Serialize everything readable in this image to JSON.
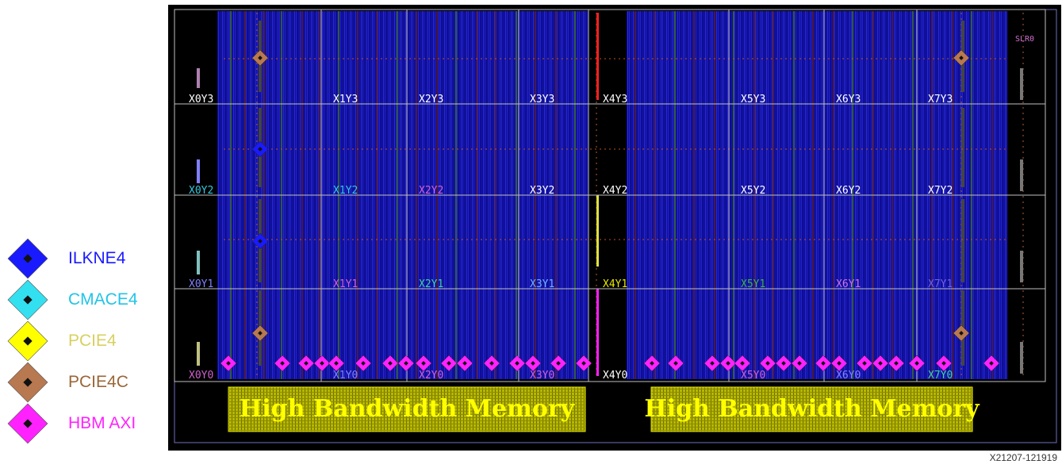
{
  "legend": [
    {
      "key": "ilkne4",
      "label": "ILKNE4",
      "color": "#1a1aff",
      "text_color": "#1a1aff"
    },
    {
      "key": "cmace4",
      "label": "CMACE4",
      "color": "#33e0f0",
      "text_color": "#22c4e6"
    },
    {
      "key": "pcie4",
      "label": "PCIE4",
      "color": "#ffff00",
      "text_color": "#d8d060"
    },
    {
      "key": "pcie4c",
      "label": "PCIE4C",
      "color": "#b87850",
      "text_color": "#9a6638"
    },
    {
      "key": "hbm_axi",
      "label": "HBM AXI",
      "color": "#ff22ff",
      "text_color": "#ff22ff"
    }
  ],
  "device": {
    "slr_label": "SLR0",
    "hbm_labels": [
      "High Bandwidth Memory",
      "High Bandwidth Memory"
    ],
    "clock_regions": [
      {
        "name": "X0Y3",
        "color": "#ffffff"
      },
      {
        "name": "X1Y3",
        "color": "#ffffff"
      },
      {
        "name": "X2Y3",
        "color": "#ffffff"
      },
      {
        "name": "X3Y3",
        "color": "#ffffff"
      },
      {
        "name": "X4Y3",
        "color": "#ffffff"
      },
      {
        "name": "X5Y3",
        "color": "#ffffff"
      },
      {
        "name": "X6Y3",
        "color": "#ffffff"
      },
      {
        "name": "X7Y3",
        "color": "#ffffff"
      },
      {
        "name": "X0Y2",
        "color": "#30c8e0"
      },
      {
        "name": "X1Y2",
        "color": "#30c8e0"
      },
      {
        "name": "X2Y2",
        "color": "#d060d0"
      },
      {
        "name": "X3Y2",
        "color": "#ffffff"
      },
      {
        "name": "X4Y2",
        "color": "#ffffff"
      },
      {
        "name": "X5Y2",
        "color": "#ffffff"
      },
      {
        "name": "X6Y2",
        "color": "#ffffff"
      },
      {
        "name": "X7Y2",
        "color": "#ffffff"
      },
      {
        "name": "X0Y1",
        "color": "#8080ff"
      },
      {
        "name": "X1Y1",
        "color": "#d060d0"
      },
      {
        "name": "X2Y1",
        "color": "#40d0a0"
      },
      {
        "name": "X3Y1",
        "color": "#70b0ff"
      },
      {
        "name": "X4Y1",
        "color": "#e8e800"
      },
      {
        "name": "X5Y1",
        "color": "#40b040"
      },
      {
        "name": "X6Y1",
        "color": "#d070e0"
      },
      {
        "name": "X7Y1",
        "color": "#7060e0"
      },
      {
        "name": "X0Y0",
        "color": "#d060d0"
      },
      {
        "name": "X1Y0",
        "color": "#8080ff"
      },
      {
        "name": "X2Y0",
        "color": "#d060d0"
      },
      {
        "name": "X3Y0",
        "color": "#d060d0"
      },
      {
        "name": "X4Y0",
        "color": "#ffffff"
      },
      {
        "name": "X5Y0",
        "color": "#d060d0"
      },
      {
        "name": "X6Y0",
        "color": "#8080ff"
      },
      {
        "name": "X7Y0",
        "color": "#40d0a0"
      }
    ],
    "placed_blocks": {
      "ilkne4_count": 2,
      "pcie4c_count": 4,
      "hbm_axi_count": 32
    }
  },
  "figure_id": "X21207-121919"
}
